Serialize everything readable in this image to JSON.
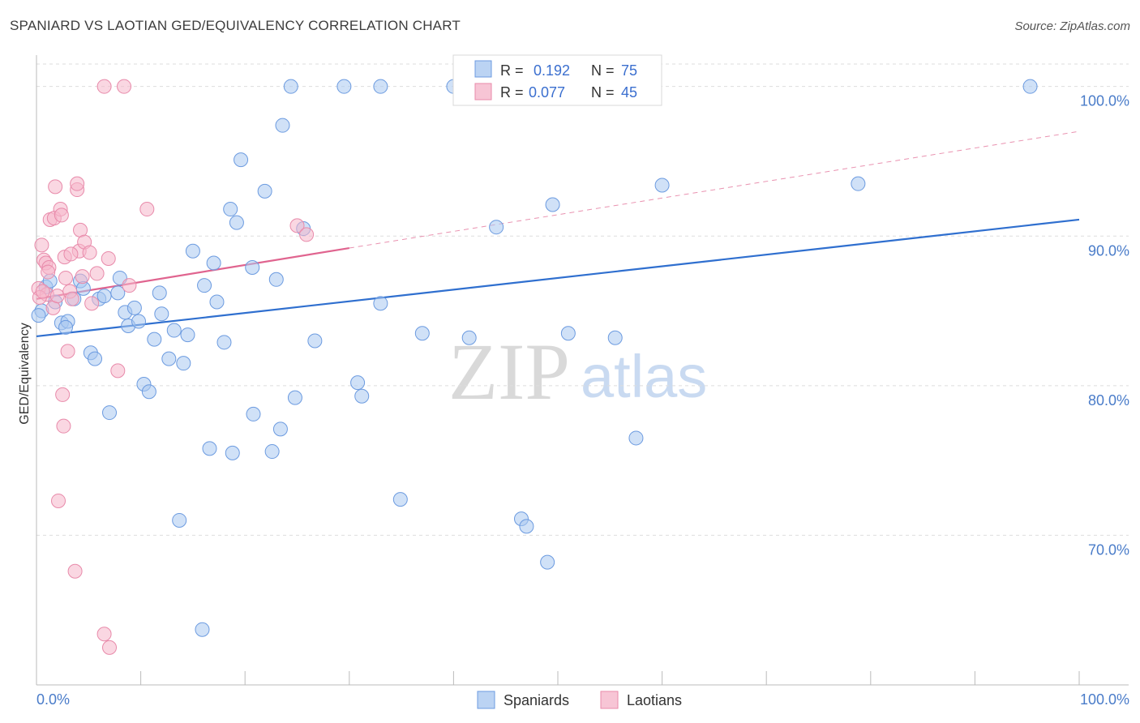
{
  "title": "SPANIARD VS LAOTIAN GED/EQUIVALENCY CORRELATION CHART",
  "source": "Source: ZipAtlas.com",
  "colors": {
    "spaniards_fill": "#aac8f0",
    "spaniards_stroke": "#6c9be0",
    "spaniards_line": "#2f6fcf",
    "laotians_fill": "#f5b6cb",
    "laotians_stroke": "#e88aaa",
    "laotians_line": "#e0648f",
    "tick_color": "#4a7cc9",
    "grid": "#dddddd"
  },
  "legend": {
    "rows": [
      {
        "r_label": "R =",
        "r_value": "0.192",
        "n_label": "N =",
        "n_value": "75"
      },
      {
        "r_label": "R =",
        "r_value": "0.077",
        "n_label": "N =",
        "n_value": "45"
      }
    ]
  },
  "bottom_legend": [
    "Spaniards",
    "Laotians"
  ],
  "watermark": {
    "zip": "ZIP",
    "atlas": "atlas"
  },
  "chart_data": {
    "type": "scatter",
    "title": "SPANIARD VS LAOTIAN GED/EQUIVALENCY CORRELATION CHART",
    "xlabel": "",
    "ylabel": "GED/Equivalency",
    "xlim": [
      0,
      100
    ],
    "ylim": [
      60,
      101.5
    ],
    "x_tick_labels": [
      "0.0%",
      "100.0%"
    ],
    "y_ticks": [
      70,
      80,
      90,
      100
    ],
    "y_tick_labels": [
      "70.0%",
      "80.0%",
      "90.0%",
      "100.0%"
    ],
    "grid": "horizontal dashed",
    "legend_position": "top-center",
    "series": [
      {
        "name": "Spaniards",
        "R": 0.192,
        "N": 75,
        "trend": {
          "x": [
            0,
            100
          ],
          "y": [
            83.3,
            91.1
          ],
          "style": "solid"
        },
        "points": [
          [
            0.5,
            85.0
          ],
          [
            0.9,
            86.6
          ],
          [
            1.3,
            87.0
          ],
          [
            1.8,
            85.6
          ],
          [
            2.4,
            84.2
          ],
          [
            3.0,
            84.3
          ],
          [
            3.6,
            85.8
          ],
          [
            4.2,
            87.0
          ],
          [
            4.5,
            86.5
          ],
          [
            5.2,
            82.2
          ],
          [
            5.6,
            81.8
          ],
          [
            6.0,
            85.8
          ],
          [
            6.5,
            86.0
          ],
          [
            7.0,
            78.2
          ],
          [
            7.8,
            86.2
          ],
          [
            8.0,
            87.2
          ],
          [
            8.5,
            84.9
          ],
          [
            8.8,
            84.0
          ],
          [
            9.4,
            85.2
          ],
          [
            9.8,
            84.3
          ],
          [
            10.3,
            80.1
          ],
          [
            10.8,
            79.6
          ],
          [
            11.3,
            83.1
          ],
          [
            11.8,
            86.2
          ],
          [
            12.0,
            84.8
          ],
          [
            12.7,
            81.8
          ],
          [
            13.2,
            83.7
          ],
          [
            13.7,
            71.0
          ],
          [
            14.1,
            81.5
          ],
          [
            14.5,
            83.4
          ],
          [
            15.0,
            89.0
          ],
          [
            16.1,
            86.7
          ],
          [
            16.6,
            75.8
          ],
          [
            17.0,
            88.2
          ],
          [
            17.3,
            85.6
          ],
          [
            18.0,
            82.9
          ],
          [
            18.6,
            91.8
          ],
          [
            18.8,
            75.5
          ],
          [
            19.2,
            90.9
          ],
          [
            19.6,
            95.1
          ],
          [
            20.7,
            87.9
          ],
          [
            20.8,
            78.1
          ],
          [
            21.9,
            93.0
          ],
          [
            22.6,
            75.6
          ],
          [
            23.0,
            87.1
          ],
          [
            23.4,
            77.1
          ],
          [
            23.6,
            97.4
          ],
          [
            24.4,
            100.0
          ],
          [
            24.8,
            79.2
          ],
          [
            25.6,
            90.5
          ],
          [
            26.7,
            83.0
          ],
          [
            29.5,
            100.0
          ],
          [
            30.8,
            80.2
          ],
          [
            31.2,
            79.3
          ],
          [
            33.0,
            100.0
          ],
          [
            33.0,
            85.5
          ],
          [
            34.9,
            72.4
          ],
          [
            37.0,
            83.5
          ],
          [
            40.0,
            100.0
          ],
          [
            41.5,
            83.2
          ],
          [
            44.1,
            90.6
          ],
          [
            46.5,
            71.1
          ],
          [
            47.0,
            70.6
          ],
          [
            49.5,
            92.1
          ],
          [
            49.0,
            68.2
          ],
          [
            50.5,
            100.0
          ],
          [
            51.0,
            83.5
          ],
          [
            55.5,
            83.2
          ],
          [
            57.5,
            76.5
          ],
          [
            60.0,
            93.4
          ],
          [
            78.8,
            93.5
          ],
          [
            95.3,
            100.0
          ],
          [
            15.9,
            63.7
          ],
          [
            0.2,
            84.7
          ],
          [
            2.8,
            83.9
          ]
        ]
      },
      {
        "name": "Laotians",
        "R": 0.077,
        "N": 45,
        "trend": {
          "x": [
            0,
            30
          ],
          "y": [
            85.8,
            89.2
          ],
          "style": "solid",
          "extended_to": [
            100,
            97.0
          ],
          "extended_style": "dashed"
        },
        "points": [
          [
            0.2,
            86.5
          ],
          [
            0.5,
            89.4
          ],
          [
            0.7,
            88.4
          ],
          [
            0.9,
            88.2
          ],
          [
            1.0,
            86.1
          ],
          [
            1.2,
            87.9
          ],
          [
            1.3,
            91.1
          ],
          [
            1.6,
            85.2
          ],
          [
            1.7,
            91.2
          ],
          [
            1.8,
            93.3
          ],
          [
            2.0,
            86.0
          ],
          [
            2.1,
            72.3
          ],
          [
            2.3,
            91.8
          ],
          [
            2.4,
            91.4
          ],
          [
            2.5,
            79.4
          ],
          [
            2.6,
            77.3
          ],
          [
            2.7,
            88.6
          ],
          [
            2.8,
            87.2
          ],
          [
            3.0,
            82.3
          ],
          [
            3.2,
            86.3
          ],
          [
            3.4,
            85.8
          ],
          [
            3.7,
            67.6
          ],
          [
            3.9,
            93.1
          ],
          [
            3.9,
            93.5
          ],
          [
            4.1,
            89.0
          ],
          [
            4.2,
            90.4
          ],
          [
            4.4,
            87.3
          ],
          [
            4.6,
            89.6
          ],
          [
            5.1,
            88.9
          ],
          [
            5.3,
            85.5
          ],
          [
            5.8,
            87.5
          ],
          [
            6.5,
            100.0
          ],
          [
            6.5,
            63.4
          ],
          [
            6.9,
            88.5
          ],
          [
            7.0,
            62.5
          ],
          [
            7.8,
            81.0
          ],
          [
            8.4,
            100.0
          ],
          [
            8.9,
            86.7
          ],
          [
            10.6,
            91.8
          ],
          [
            25.0,
            90.7
          ],
          [
            25.9,
            90.1
          ],
          [
            0.3,
            85.9
          ],
          [
            1.1,
            87.6
          ],
          [
            3.3,
            88.8
          ],
          [
            0.6,
            86.3
          ]
        ]
      }
    ]
  }
}
